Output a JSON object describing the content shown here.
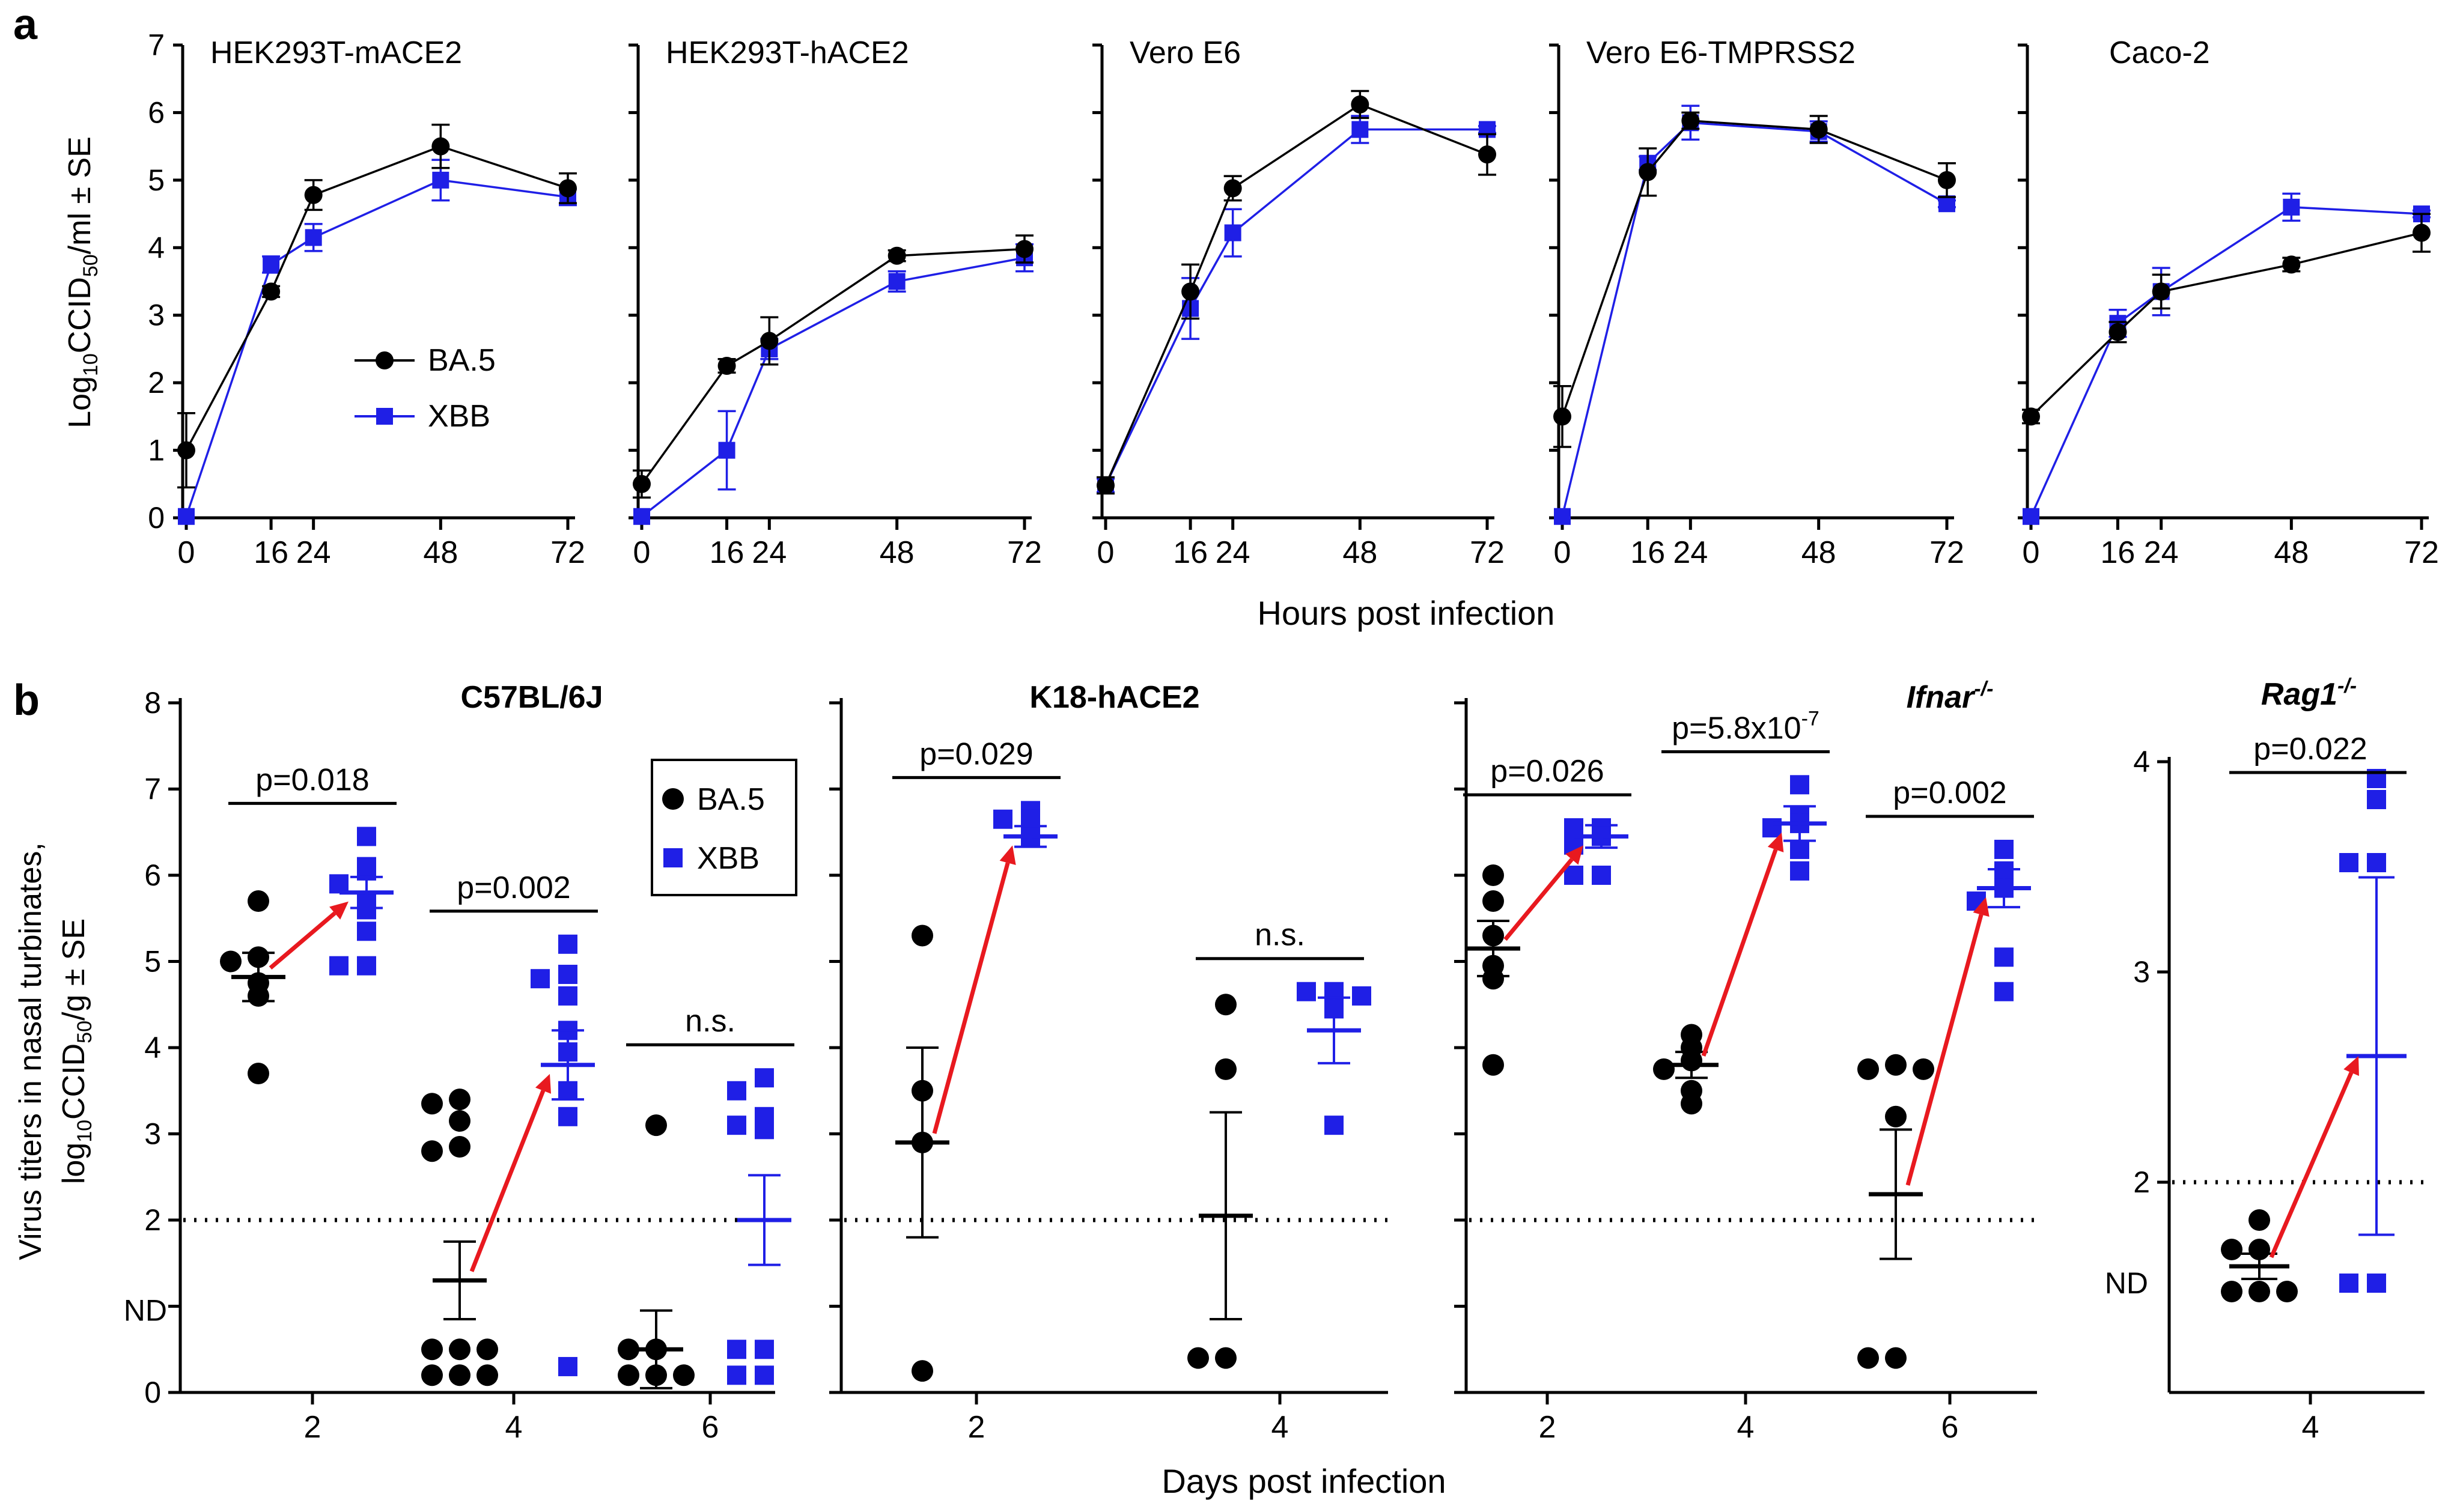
{
  "panel_a": {
    "letter": "a",
    "ylabel_prefix": "Log",
    "ylabel_sub": "10",
    "ylabel_mid": "CCID",
    "ylabel_sub2": "50",
    "ylabel_suffix": "/ml ± SE",
    "xlabel": "Hours post infection"
  },
  "panel_b": {
    "letter": "b",
    "ylabel_line1": "Virus titers in nasal turbinates,",
    "ylabel_line2_prefix": "log",
    "ylabel_line2_sub": "10",
    "ylabel_line2_mid": "CCID",
    "ylabel_line2_sub2": "50",
    "ylabel_line2_suffix": "/g ± SE",
    "xlabel": "Days post infection",
    "nd_label": "ND"
  },
  "colors": {
    "ba5": "#000000",
    "xbb": "#1f1fe6",
    "arrow": "#e8191f"
  },
  "chart_data": [
    {
      "type": "line",
      "title": "HEK293T-mACE2",
      "x": [
        0,
        16,
        24,
        48,
        72
      ],
      "xticks": [
        "0",
        "16",
        "24",
        "48",
        "72"
      ],
      "ylim": [
        0,
        7
      ],
      "yticks": [
        "0",
        "1",
        "2",
        "3",
        "4",
        "5",
        "6",
        "7"
      ],
      "legend": {
        "placement": "middle-left",
        "entries": [
          "BA.5",
          "XBB"
        ]
      },
      "series": [
        {
          "name": "BA.5",
          "values": [
            1.0,
            3.35,
            4.78,
            5.5,
            4.88
          ],
          "errors": [
            0.55,
            0.08,
            0.22,
            0.32,
            0.22
          ]
        },
        {
          "name": "XBB",
          "values": [
            0.02,
            3.75,
            4.15,
            5.0,
            4.75
          ],
          "errors": [
            0,
            0.12,
            0.2,
            0.3,
            0.12
          ]
        }
      ]
    },
    {
      "type": "line",
      "title": "HEK293T-hACE2",
      "x": [
        0,
        16,
        24,
        48,
        72
      ],
      "xticks": [
        "0",
        "16",
        "24",
        "48",
        "72"
      ],
      "ylim": [
        0,
        7
      ],
      "series": [
        {
          "name": "BA.5",
          "values": [
            0.5,
            2.25,
            2.62,
            3.88,
            3.98
          ],
          "errors": [
            0.2,
            0.1,
            0.35,
            0.08,
            0.2
          ]
        },
        {
          "name": "XBB",
          "values": [
            0.02,
            1.0,
            2.5,
            3.5,
            3.85
          ],
          "errors": [
            0,
            0.58,
            0.15,
            0.15,
            0.2
          ]
        }
      ]
    },
    {
      "type": "line",
      "title": "Vero E6",
      "x": [
        0,
        16,
        24,
        48,
        72
      ],
      "xticks": [
        "0",
        "16",
        "24",
        "48",
        "72"
      ],
      "ylim": [
        0,
        7
      ],
      "series": [
        {
          "name": "BA.5",
          "values": [
            0.48,
            3.35,
            4.88,
            6.12,
            5.38
          ],
          "errors": [
            0.12,
            0.4,
            0.18,
            0.2,
            0.3
          ]
        },
        {
          "name": "XBB",
          "values": [
            0.48,
            3.1,
            4.22,
            5.75,
            5.75
          ],
          "errors": [
            0.1,
            0.45,
            0.35,
            0.2,
            0.05
          ]
        }
      ]
    },
    {
      "type": "line",
      "title": "Vero E6-TMPRSS2",
      "x": [
        0,
        16,
        24,
        48,
        72
      ],
      "xticks": [
        "0",
        "16",
        "24",
        "48",
        "72"
      ],
      "ylim": [
        0,
        7
      ],
      "series": [
        {
          "name": "BA.5",
          "values": [
            1.5,
            5.12,
            5.88,
            5.75,
            5.0
          ],
          "errors": [
            0.45,
            0.35,
            0.12,
            0.2,
            0.25
          ]
        },
        {
          "name": "XBB",
          "values": [
            0.02,
            5.25,
            5.85,
            5.72,
            4.65
          ],
          "errors": [
            0,
            0.1,
            0.25,
            0.15,
            0.05
          ]
        }
      ]
    },
    {
      "type": "line",
      "title": "Caco-2",
      "x": [
        0,
        16,
        24,
        48,
        72
      ],
      "xticks": [
        "0",
        "16",
        "24",
        "48",
        "72"
      ],
      "ylim": [
        0,
        7
      ],
      "series": [
        {
          "name": "BA.5",
          "values": [
            1.5,
            2.75,
            3.35,
            3.75,
            4.22
          ],
          "errors": [
            0.1,
            0.15,
            0.25,
            0.1,
            0.28
          ]
        },
        {
          "name": "XBB",
          "values": [
            0.02,
            2.88,
            3.35,
            4.6,
            4.5
          ],
          "errors": [
            0,
            0.2,
            0.35,
            0.2,
            0.05
          ]
        }
      ]
    },
    {
      "type": "scatter",
      "title": "C57BL/6J",
      "xticks": [
        "2",
        "4",
        "6"
      ],
      "ylim": [
        0,
        8
      ],
      "yticks": [
        "0",
        "1",
        "2",
        "3",
        "4",
        "5",
        "6",
        "7",
        "8"
      ],
      "detection_limit": 2,
      "legend": {
        "placement": "top-right",
        "entries": [
          "BA.5",
          "XBB"
        ]
      },
      "groups": [
        {
          "day": "2",
          "ba5": {
            "points": [
              5.7,
              5.05,
              5.0,
              4.75,
              4.6,
              3.7
            ],
            "mean": 4.82,
            "se": 0.28
          },
          "xbb": {
            "points": [
              6.45,
              6.1,
              6.05,
              5.9,
              5.7,
              5.6,
              5.35,
              4.95,
              4.95
            ],
            "mean": 5.8,
            "se": 0.18
          },
          "pvalue": "p=0.018"
        },
        {
          "day": "4",
          "ba5": {
            "points": [
              3.4,
              3.35,
              3.15,
              2.85,
              2.8,
              0.5,
              0.5,
              0.5,
              0.2,
              0.2,
              0.2
            ],
            "mean": 1.3,
            "se": 0.45
          },
          "xbb": {
            "points": [
              5.2,
              4.85,
              4.8,
              4.6,
              4.2,
              3.95,
              3.5,
              3.2,
              0.3
            ],
            "mean": 3.8,
            "se": 0.4
          },
          "pvalue": "p=0.002"
        },
        {
          "day": "6",
          "ba5": {
            "points": [
              3.1,
              0.5,
              0.5,
              0.2,
              0.2,
              0.2
            ],
            "mean": 0.5,
            "se": 0.45
          },
          "xbb": {
            "points": [
              3.65,
              3.5,
              3.2,
              3.1,
              3.05,
              0.5,
              0.5,
              0.2,
              0.2
            ],
            "mean": 2.0,
            "se": 0.52
          },
          "pvalue": "n.s."
        }
      ]
    },
    {
      "type": "scatter",
      "title": "K18-hACE2",
      "xticks": [
        "2",
        "4"
      ],
      "ylim": [
        0,
        8
      ],
      "detection_limit": 2,
      "groups": [
        {
          "day": "2",
          "ba5": {
            "points": [
              5.3,
              3.5,
              2.9,
              0.25
            ],
            "mean": 2.9,
            "se": 1.1
          },
          "xbb": {
            "points": [
              6.75,
              6.65,
              6.65,
              6.45
            ],
            "mean": 6.45,
            "se": 0.12
          },
          "pvalue": "p=0.029"
        },
        {
          "day": "4",
          "ba5": {
            "points": [
              4.5,
              3.75,
              0.4,
              0.4
            ],
            "mean": 2.05,
            "se": 1.2
          },
          "xbb": {
            "points": [
              4.65,
              4.65,
              4.6,
              4.45,
              3.1
            ],
            "mean": 4.2,
            "se": 0.38
          },
          "pvalue": "n.s."
        }
      ]
    },
    {
      "type": "scatter",
      "title": "Ifnar",
      "title_sup": "-/-",
      "xticks": [
        "2",
        "4",
        "6"
      ],
      "ylim": [
        0,
        8
      ],
      "detection_limit": 2,
      "groups": [
        {
          "day": "2",
          "ba5": {
            "points": [
              6.0,
              5.7,
              5.3,
              4.95,
              4.8,
              3.8
            ],
            "mean": 5.15,
            "se": 0.32
          },
          "xbb": {
            "points": [
              6.55,
              6.55,
              6.45,
              6.35,
              6.0,
              6.0
            ],
            "mean": 6.45,
            "se": 0.13
          },
          "pvalue": "p=0.026"
        },
        {
          "day": "4",
          "ba5": {
            "points": [
              4.15,
              4.0,
              3.85,
              3.75,
              3.5,
              3.35
            ],
            "mean": 3.8,
            "se": 0.15
          },
          "xbb": {
            "points": [
              7.05,
              6.7,
              6.6,
              6.55,
              6.3,
              6.05
            ],
            "mean": 6.6,
            "se": 0.2
          },
          "pvalue": "p=5.8x10-7"
        },
        {
          "day": "6",
          "ba5": {
            "points": [
              3.8,
              3.75,
              3.75,
              3.2,
              0.4,
              0.4
            ],
            "mean": 2.3,
            "se": 0.75
          },
          "xbb": {
            "points": [
              6.3,
              6.05,
              5.85,
              5.7,
              5.05,
              4.65
            ],
            "mean": 5.85,
            "se": 0.22
          },
          "pvalue": "p=0.002"
        }
      ]
    },
    {
      "type": "scatter",
      "title": "Rag1",
      "title_sup": "-/-",
      "xticks": [
        "4"
      ],
      "ylim": [
        1.0,
        4.0
      ],
      "yticks": [
        "2",
        "3",
        "4"
      ],
      "detection_limit": 2,
      "groups": [
        {
          "day": "4",
          "ba5": {
            "points": [
              1.82,
              1.68,
              1.68,
              1.48,
              1.48,
              1.48
            ],
            "mean": 1.6,
            "se": 0.06
          },
          "xbb": {
            "points": [
              3.92,
              3.82,
              3.52,
              3.52,
              1.52,
              1.52
            ],
            "mean": 2.6,
            "se": 0.85
          },
          "pvalue": "p=0.022"
        }
      ]
    }
  ]
}
